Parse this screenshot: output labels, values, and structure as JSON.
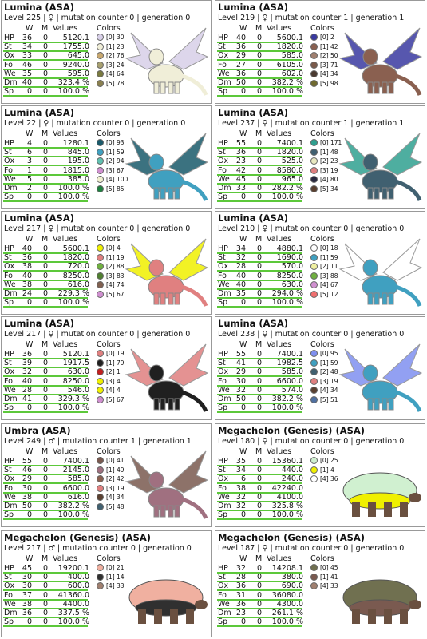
{
  "headers": {
    "w": "W",
    "m": "M",
    "values": "Values",
    "colors": "Colors"
  },
  "cards": [
    {
      "title": "Lumina (ASA)",
      "info": "Level 225 | ♀ | mutation counter 0 | generation 0",
      "stats": [
        [
          "HP",
          36,
          0,
          "5120.1"
        ],
        [
          "St",
          34,
          0,
          "1755.0"
        ],
        [
          "Ox",
          33,
          0,
          "645.0"
        ],
        [
          "Fo",
          46,
          0,
          "9240.0"
        ],
        [
          "We",
          35,
          0,
          "595.0"
        ],
        [
          "Dm",
          40,
          0,
          "323.4 %"
        ],
        [
          "Sp",
          0,
          0,
          "100.0 %"
        ]
      ],
      "colors": [
        {
          "label": "[0] 30",
          "color": "#d8d0e8"
        },
        {
          "label": "[1] 23",
          "color": "#f0eed8"
        },
        {
          "label": "[2] 76",
          "color": "#c8a870"
        },
        {
          "label": "[3] 24",
          "color": "#a8a070"
        },
        {
          "label": "[4] 64",
          "color": "#7a7a40"
        },
        {
          "label": "[5] 78",
          "color": "#8a8050"
        }
      ]
    },
    {
      "title": "Lumina (ASA)",
      "info": "Level 219 | ♀ | mutation counter 1 | generation 1",
      "stats": [
        [
          "HP",
          40,
          0,
          "5600.1"
        ],
        [
          "St",
          36,
          0,
          "1820.0"
        ],
        [
          "Ox",
          29,
          0,
          "585.0"
        ],
        [
          "Fo",
          27,
          0,
          "6105.0"
        ],
        [
          "We",
          36,
          0,
          "602.0"
        ],
        [
          "Dm",
          50,
          0,
          "382.2 %"
        ],
        [
          "Sp",
          0,
          0,
          "100.0 %"
        ]
      ],
      "colors": [
        {
          "label": "[0] 2",
          "color": "#3a3aa0"
        },
        {
          "label": "[1] 42",
          "color": "#8a6050"
        },
        {
          "label": "[2] 50",
          "color": "#a08070"
        },
        {
          "label": "[3] 71",
          "color": "#7a5a4a"
        },
        {
          "label": "[4] 34",
          "color": "#4a3a30"
        },
        {
          "label": "[5] 98",
          "color": "#706a30"
        }
      ]
    },
    {
      "title": "Lumina (ASA)",
      "info": "Level 22 | ♀ | mutation counter 0 | generation 0",
      "stats": [
        [
          "HP",
          4,
          0,
          "1280.1"
        ],
        [
          "St",
          6,
          0,
          "845.0"
        ],
        [
          "Ox",
          3,
          0,
          "195.0"
        ],
        [
          "Fo",
          1,
          0,
          "1815.0"
        ],
        [
          "We",
          5,
          0,
          "385.0"
        ],
        [
          "Dm",
          2,
          0,
          "100.0 %"
        ],
        [
          "Sp",
          0,
          0,
          "100.0 %"
        ]
      ],
      "colors": [
        {
          "label": "[0] 93",
          "color": "#1a5a6a"
        },
        {
          "label": "[1] 59",
          "color": "#40a0c0"
        },
        {
          "label": "[2] 94",
          "color": "#60c0b0"
        },
        {
          "label": "[3] 67",
          "color": "#d090d0"
        },
        {
          "label": "[4] 100",
          "color": "#f0f0d0"
        },
        {
          "label": "[5] 85",
          "color": "#208040"
        }
      ]
    },
    {
      "title": "Lumina (ASA)",
      "info": "Level 237 | ♀ | mutation counter 1 | generation 1",
      "stats": [
        [
          "HP",
          55,
          0,
          "7400.1"
        ],
        [
          "St",
          36,
          0,
          "1820.0"
        ],
        [
          "Ox",
          23,
          0,
          "525.0"
        ],
        [
          "Fo",
          42,
          0,
          "8580.0"
        ],
        [
          "We",
          45,
          0,
          "965.0"
        ],
        [
          "Dm",
          33,
          0,
          "282.2 %"
        ],
        [
          "Sp",
          0,
          0,
          "100.0 %"
        ]
      ],
      "colors": [
        {
          "label": "[0] 171",
          "color": "#30a090"
        },
        {
          "label": "[1] 48",
          "color": "#406070"
        },
        {
          "label": "[2] 23",
          "color": "#e8e8c0"
        },
        {
          "label": "[3] 19",
          "color": "#e08080"
        },
        {
          "label": "[4] 80",
          "color": "#2a2a40"
        },
        {
          "label": "[5] 34",
          "color": "#5a4030"
        }
      ]
    },
    {
      "title": "Lumina (ASA)",
      "info": "Level 217 | ♀ | mutation counter 0 | generation 0",
      "stats": [
        [
          "HP",
          40,
          0,
          "5600.1"
        ],
        [
          "St",
          36,
          0,
          "1820.0"
        ],
        [
          "Ox",
          38,
          0,
          "720.0"
        ],
        [
          "Fo",
          40,
          0,
          "8250.0"
        ],
        [
          "We",
          38,
          0,
          "616.0"
        ],
        [
          "Dm",
          24,
          0,
          "229.3 %"
        ],
        [
          "Sp",
          0,
          0,
          "100.0 %"
        ]
      ],
      "colors": [
        {
          "label": "[0] 4",
          "color": "#f0f000"
        },
        {
          "label": "[1] 19",
          "color": "#e08080"
        },
        {
          "label": "[2] 88",
          "color": "#70b040"
        },
        {
          "label": "[3] 83",
          "color": "#508030"
        },
        {
          "label": "[4] 74",
          "color": "#806050"
        },
        {
          "label": "[5] 67",
          "color": "#d090d0"
        }
      ]
    },
    {
      "title": "Lumina (ASA)",
      "info": "Level 210 | ♀ | mutation counter 0 | generation 0",
      "stats": [
        [
          "HP",
          34,
          0,
          "4880.1"
        ],
        [
          "St",
          32,
          0,
          "1690.0"
        ],
        [
          "Ox",
          28,
          0,
          "570.0"
        ],
        [
          "Fo",
          40,
          0,
          "8250.0"
        ],
        [
          "We",
          40,
          0,
          "630.0"
        ],
        [
          "Dm",
          35,
          0,
          "294.0 %"
        ],
        [
          "Sp",
          0,
          0,
          "100.0 %"
        ]
      ],
      "colors": [
        {
          "label": "[0] 18",
          "color": "#ffffff"
        },
        {
          "label": "[1] 59",
          "color": "#40a0c0"
        },
        {
          "label": "[2] 11",
          "color": "#f0f0a0"
        },
        {
          "label": "[3] 88",
          "color": "#70b040"
        },
        {
          "label": "[4] 67",
          "color": "#d090d0"
        },
        {
          "label": "[5] 12",
          "color": "#f07070"
        }
      ]
    },
    {
      "title": "Lumina (ASA)",
      "info": "Level 217 | ♀ | mutation counter 0 | generation 0",
      "stats": [
        [
          "HP",
          36,
          0,
          "5120.1"
        ],
        [
          "St",
          39,
          0,
          "1917.5"
        ],
        [
          "Ox",
          32,
          0,
          "630.0"
        ],
        [
          "Fo",
          40,
          0,
          "8250.0"
        ],
        [
          "We",
          28,
          0,
          "546.0"
        ],
        [
          "Dm",
          41,
          0,
          "329.3 %"
        ],
        [
          "Sp",
          0,
          0,
          "100.0 %"
        ]
      ],
      "colors": [
        {
          "label": "[0] 19",
          "color": "#e08080"
        },
        {
          "label": "[1] 79",
          "color": "#202020"
        },
        {
          "label": "[2] 1",
          "color": "#c02020"
        },
        {
          "label": "[3] 4",
          "color": "#f0f000"
        },
        {
          "label": "[4] 4",
          "color": "#f0f000"
        },
        {
          "label": "[5] 67",
          "color": "#d090d0"
        }
      ]
    },
    {
      "title": "Lumina (ASA)",
      "info": "Level 238 | ♀ | mutation counter 0 | generation 0",
      "stats": [
        [
          "HP",
          55,
          0,
          "7400.1"
        ],
        [
          "St",
          41,
          0,
          "1982.5"
        ],
        [
          "Ox",
          29,
          0,
          "585.0"
        ],
        [
          "Fo",
          30,
          0,
          "6600.0"
        ],
        [
          "We",
          32,
          0,
          "574.0"
        ],
        [
          "Dm",
          50,
          0,
          "382.2 %"
        ],
        [
          "Sp",
          0,
          0,
          "100.0 %"
        ]
      ],
      "colors": [
        {
          "label": "[0] 95",
          "color": "#8090f0"
        },
        {
          "label": "[1] 59",
          "color": "#40a0c0"
        },
        {
          "label": "[2] 48",
          "color": "#406070"
        },
        {
          "label": "[3] 19",
          "color": "#e08080"
        },
        {
          "label": "[4] 34",
          "color": "#5a4030"
        },
        {
          "label": "[5] 51",
          "color": "#5070a0"
        }
      ]
    },
    {
      "title": "Umbra (ASA)",
      "info": "Level 249 | ♂ | mutation counter 1 | generation 1",
      "stats": [
        [
          "HP",
          55,
          0,
          "7400.1"
        ],
        [
          "St",
          46,
          0,
          "2145.0"
        ],
        [
          "Ox",
          29,
          0,
          "585.0"
        ],
        [
          "Fo",
          30,
          0,
          "6600.0"
        ],
        [
          "We",
          38,
          0,
          "616.0"
        ],
        [
          "Dm",
          50,
          0,
          "382.2 %"
        ],
        [
          "Sp",
          0,
          0,
          "100.0 %"
        ]
      ],
      "colors": [
        {
          "label": "[0] 41",
          "color": "#7a5a50"
        },
        {
          "label": "[1] 49",
          "color": "#a07080"
        },
        {
          "label": "[2] 42",
          "color": "#8a6050"
        },
        {
          "label": "[3] 19",
          "color": "#e08080"
        },
        {
          "label": "[4] 34",
          "color": "#5a4030"
        },
        {
          "label": "[5] 48",
          "color": "#406070"
        }
      ]
    },
    {
      "title": "Megachelon (Genesis) (ASA)",
      "info": "Level 180 | ♀ | mutation counter 0 | generation 0",
      "stats": [
        [
          "HP",
          35,
          0,
          "15360.1"
        ],
        [
          "St",
          34,
          0,
          "440.0"
        ],
        [
          "Ox",
          6,
          0,
          "240.0"
        ],
        [
          "Fo",
          38,
          0,
          "42240.0"
        ],
        [
          "We",
          32,
          0,
          "4100.0"
        ],
        [
          "Dm",
          32,
          0,
          "325.8 %"
        ],
        [
          "Sp",
          0,
          0,
          "100.0 %"
        ]
      ],
      "colors": [
        {
          "label": "[0] 25",
          "color": "#d0f0d0"
        },
        {
          "label": "[1] 4",
          "color": "#f0f000"
        },
        {
          "label": "[4] 36",
          "color": "#ffffff"
        }
      ]
    },
    {
      "title": "Megachelon (Genesis) (ASA)",
      "info": "Level 217 | ♂ | mutation counter 0 | generation 0",
      "stats": [
        [
          "HP",
          45,
          0,
          "19200.1"
        ],
        [
          "St",
          30,
          0,
          "400.0"
        ],
        [
          "Ox",
          30,
          0,
          "600.0"
        ],
        [
          "Fo",
          37,
          0,
          "41360.0"
        ],
        [
          "We",
          38,
          0,
          "4400.0"
        ],
        [
          "Dm",
          36,
          0,
          "337.5 %"
        ],
        [
          "Sp",
          0,
          0,
          "100.0 %"
        ]
      ],
      "colors": [
        {
          "label": "[0] 21",
          "color": "#f0b0a0"
        },
        {
          "label": "[1] 14",
          "color": "#303030"
        },
        {
          "label": "[4] 33",
          "color": "#a08070"
        }
      ]
    },
    {
      "title": "Megachelon (Genesis) (ASA)",
      "info": "Level 187 | ♀ | mutation counter 0 | generation 0",
      "stats": [
        [
          "HP",
          32,
          0,
          "14208.1"
        ],
        [
          "St",
          28,
          0,
          "380.0"
        ],
        [
          "Ox",
          36,
          0,
          "690.0"
        ],
        [
          "Fo",
          31,
          0,
          "36080.0"
        ],
        [
          "We",
          36,
          0,
          "4300.0"
        ],
        [
          "Dm",
          23,
          0,
          "261.1 %"
        ],
        [
          "Sp",
          0,
          0,
          "100.0 %"
        ]
      ],
      "colors": [
        {
          "label": "[0] 45",
          "color": "#707050"
        },
        {
          "label": "[1] 41",
          "color": "#7a5a50"
        },
        {
          "label": "[4] 33",
          "color": "#a08070"
        }
      ]
    }
  ]
}
